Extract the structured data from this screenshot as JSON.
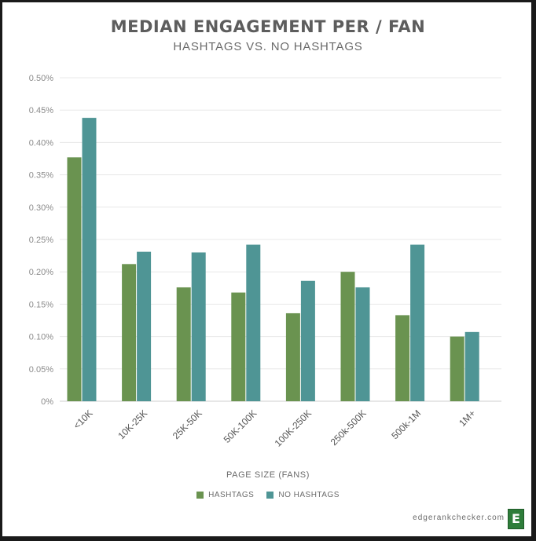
{
  "chart_data": {
    "type": "bar",
    "title": "MEDIAN ENGAGEMENT PER / FAN",
    "subtitle": "HASHTAGS VS. NO HASHTAGS",
    "xlabel": "PAGE SIZE (FANS)",
    "ylabel": "",
    "ylim": [
      0,
      0.5
    ],
    "yticks": [
      "0%",
      "0.05%",
      "0.10%",
      "0.15%",
      "0.20%",
      "0.25%",
      "0.30%",
      "0.35%",
      "0.40%",
      "0.45%",
      "0.50%"
    ],
    "grid": true,
    "legend_position": "bottom",
    "categories": [
      "<10K",
      "10K-25K",
      "25K-50K",
      "50K-100K",
      "100K-250K",
      "250k-500K",
      "500k-1M",
      "1M+"
    ],
    "series": [
      {
        "name": "HASHTAGS",
        "color": "#6a9350",
        "values": [
          0.377,
          0.212,
          0.176,
          0.168,
          0.136,
          0.2,
          0.133,
          0.1
        ]
      },
      {
        "name": "NO HASHTAGS",
        "color": "#4f9595",
        "values": [
          0.438,
          0.231,
          0.23,
          0.242,
          0.186,
          0.176,
          0.242,
          0.107
        ]
      }
    ]
  },
  "brand": {
    "site": "edgerankchecker.com",
    "logo_letter": "E"
  }
}
